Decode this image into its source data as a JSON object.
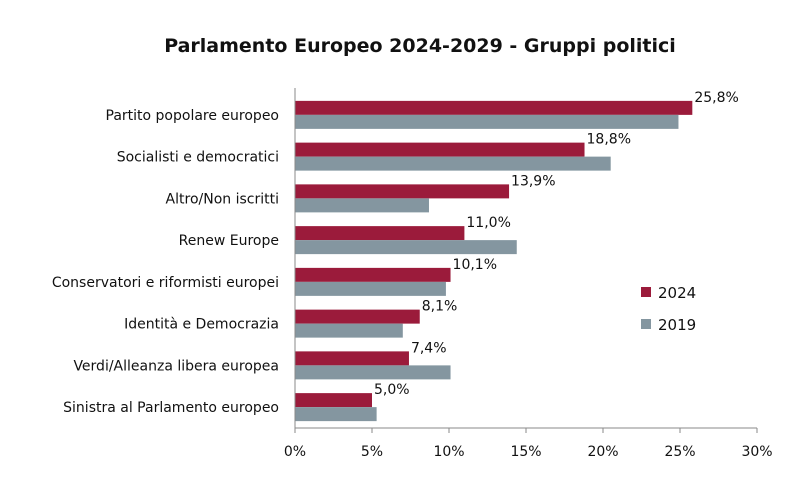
{
  "chart_data": {
    "type": "bar",
    "orientation": "horizontal",
    "title": "Parlamento Europeo 2024-2029 - Gruppi politici",
    "xlabel": "",
    "ylabel": "",
    "xlim": [
      0,
      30
    ],
    "x_ticks": [
      0,
      5,
      10,
      15,
      20,
      25,
      30
    ],
    "x_tick_labels": [
      "0%",
      "5%",
      "10%",
      "15%",
      "20%",
      "25%",
      "30%"
    ],
    "categories": [
      "Partito popolare europeo",
      "Socialisti e democratici",
      "Altro/Non iscritti",
      "Renew Europe",
      "Conservatori e riformisti europei",
      "Identità e Democrazia",
      "Verdi/Alleanza libera europea",
      "Sinistra al Parlamento europeo"
    ],
    "series": [
      {
        "name": "2024",
        "color": "#9b1b3b",
        "values": [
          25.8,
          18.8,
          13.9,
          11.0,
          10.1,
          8.1,
          7.4,
          5.0
        ],
        "labels": [
          "25,8%",
          "18,8%",
          "13,9%",
          "11,0%",
          "10,1%",
          "8,1%",
          "7,4%",
          "5,0%"
        ]
      },
      {
        "name": "2019",
        "color": "#8496a0",
        "values": [
          24.9,
          20.5,
          8.7,
          14.4,
          9.8,
          7.0,
          10.1,
          5.3
        ]
      }
    ],
    "legend": "right",
    "grid": false
  }
}
